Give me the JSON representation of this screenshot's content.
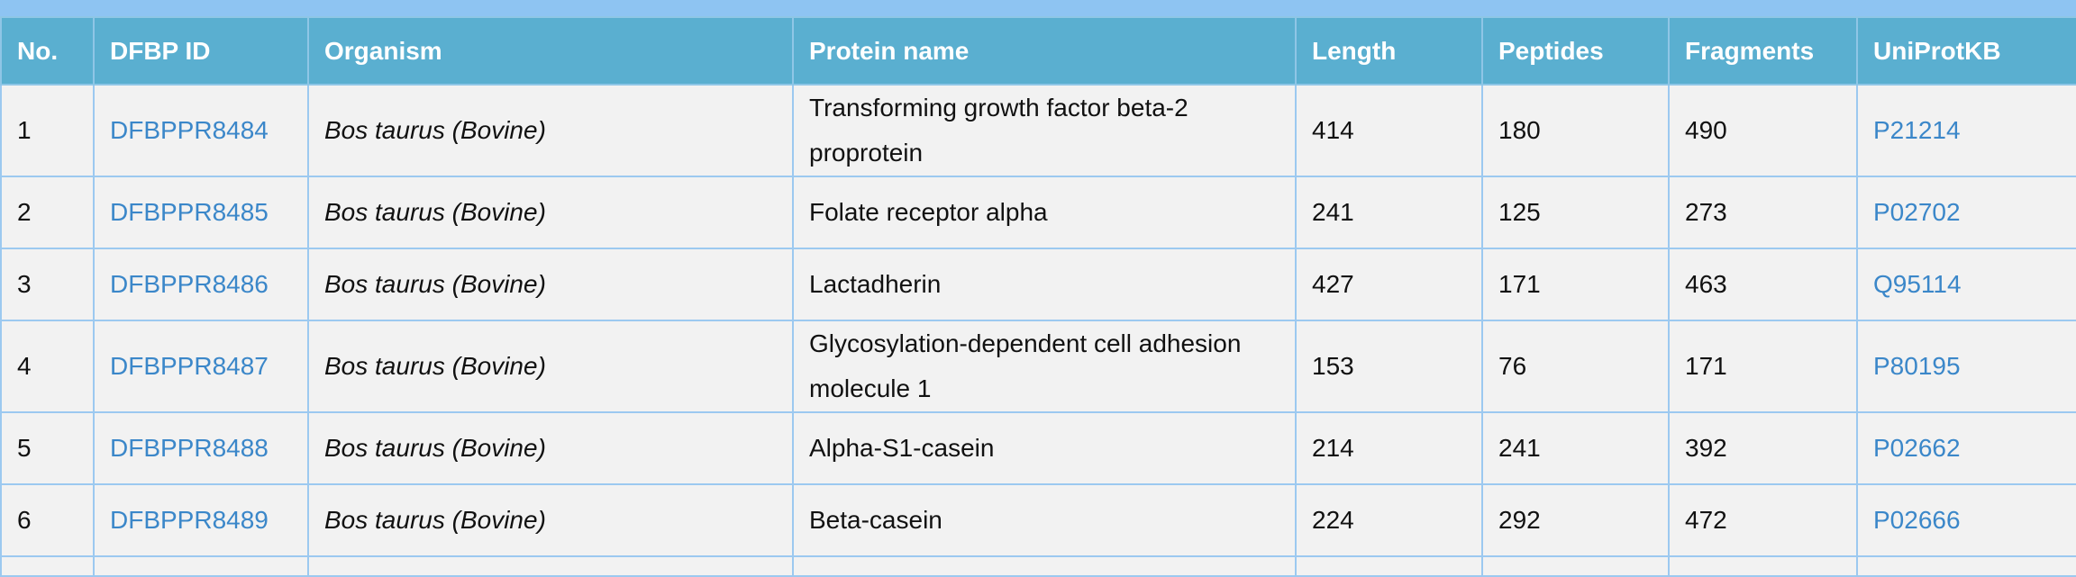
{
  "table": {
    "headers": [
      "No.",
      "DFBP ID",
      "Organism",
      "Protein name",
      "Length",
      "Peptides",
      "Fragments",
      "UniProtKB"
    ],
    "rows": [
      [
        "1",
        "DFBPPR8484",
        "Bos taurus (Bovine)",
        "Transforming growth factor beta-2 proprotein",
        "414",
        "180",
        "490",
        "P21214"
      ],
      [
        "2",
        "DFBPPR8485",
        "Bos taurus (Bovine)",
        "Folate receptor alpha",
        "241",
        "125",
        "273",
        "P02702"
      ],
      [
        "3",
        "DFBPPR8486",
        "Bos taurus (Bovine)",
        "Lactadherin",
        "427",
        "171",
        "463",
        "Q95114"
      ],
      [
        "4",
        "DFBPPR8487",
        "Bos taurus (Bovine)",
        "Glycosylation-dependent cell adhesion molecule 1",
        "153",
        "76",
        "171",
        "P80195"
      ],
      [
        "5",
        "DFBPPR8488",
        "Bos taurus (Bovine)",
        "Alpha-S1-casein",
        "214",
        "241",
        "392",
        "P02662"
      ],
      [
        "6",
        "DFBPPR8489",
        "Bos taurus (Bovine)",
        "Beta-casein",
        "224",
        "292",
        "472",
        "P02666"
      ]
    ]
  }
}
